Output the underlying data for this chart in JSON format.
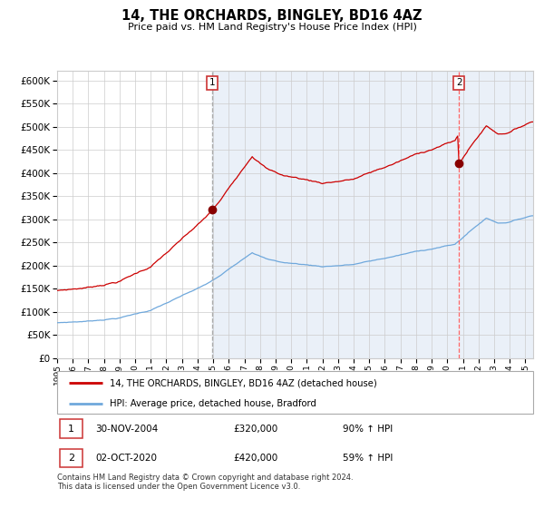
{
  "title": "14, THE ORCHARDS, BINGLEY, BD16 4AZ",
  "subtitle": "Price paid vs. HM Land Registry's House Price Index (HPI)",
  "legend_line1": "14, THE ORCHARDS, BINGLEY, BD16 4AZ (detached house)",
  "legend_line2": "HPI: Average price, detached house, Bradford",
  "annotation1_label": "1",
  "annotation1_date": "30-NOV-2004",
  "annotation1_price": "£320,000",
  "annotation1_hpi": "90% ↑ HPI",
  "annotation2_label": "2",
  "annotation2_date": "02-OCT-2020",
  "annotation2_price": "£420,000",
  "annotation2_hpi": "59% ↑ HPI",
  "footnote1": "Contains HM Land Registry data © Crown copyright and database right 2024.",
  "footnote2": "This data is licensed under the Open Government Licence v3.0.",
  "hpi_color": "#6fa8dc",
  "property_color": "#cc0000",
  "marker_color": "#880000",
  "vline1_color": "#aaaaaa",
  "vline2_color": "#ff6666",
  "bg_shaded_color": "#dce6f4",
  "ylim": [
    0,
    620000
  ],
  "yticks": [
    0,
    50000,
    100000,
    150000,
    200000,
    250000,
    300000,
    350000,
    400000,
    450000,
    500000,
    550000,
    600000
  ],
  "purchase1_x": 2004.917,
  "purchase1_y": 320000,
  "purchase2_x": 2020.75,
  "purchase2_y": 420000,
  "xmin": 1995.0,
  "xmax": 2025.5
}
